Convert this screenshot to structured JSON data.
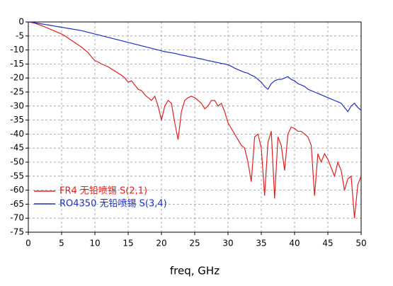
{
  "chart_data": {
    "type": "line",
    "x_label": "freq, GHz",
    "x": [
      0,
      0.5,
      1,
      1.5,
      2,
      2.5,
      3,
      3.5,
      4,
      4.5,
      5,
      5.5,
      6,
      6.5,
      7,
      7.5,
      8,
      8.5,
      9,
      9.5,
      10,
      10.5,
      11,
      11.5,
      12,
      12.5,
      13,
      13.5,
      14,
      14.5,
      15,
      15.5,
      16,
      16.5,
      17,
      17.5,
      18,
      18.5,
      19,
      19.5,
      20,
      20.5,
      21,
      21.5,
      22,
      22.5,
      23,
      23.5,
      24,
      24.5,
      25,
      25.5,
      26,
      26.5,
      27,
      27.5,
      28,
      28.5,
      29,
      29.5,
      30,
      30.5,
      31,
      31.5,
      32,
      32.5,
      33,
      33.5,
      34,
      34.5,
      35,
      35.5,
      36,
      36.5,
      37,
      37.5,
      38,
      38.5,
      39,
      39.5,
      40,
      40.5,
      41,
      41.5,
      42,
      42.5,
      43,
      43.5,
      44,
      44.5,
      45,
      45.5,
      46,
      46.5,
      47,
      47.5,
      48,
      48.5,
      49,
      49.5,
      50
    ],
    "series": [
      {
        "name": "FR4 无铅喷锡 S(2,1)",
        "color": "#e02020",
        "values": [
          0,
          -0.2,
          -0.5,
          -0.9,
          -1.3,
          -1.8,
          -2.3,
          -2.8,
          -3.3,
          -3.8,
          -4.3,
          -5,
          -5.8,
          -6.6,
          -7.4,
          -8.2,
          -9,
          -10,
          -11,
          -12.5,
          -13.8,
          -14.3,
          -15,
          -15.5,
          -16,
          -16.8,
          -17.5,
          -18.3,
          -19,
          -20,
          -21.5,
          -21,
          -22.5,
          -24,
          -24.5,
          -26,
          -27,
          -28,
          -26.5,
          -30,
          -35,
          -30,
          -28,
          -29,
          -36,
          -42,
          -32,
          -28,
          -27,
          -26.5,
          -27,
          -28,
          -29,
          -31,
          -30,
          -28,
          -28,
          -30,
          -29,
          -32,
          -36,
          -38,
          -40,
          -42,
          -44,
          -45,
          -50,
          -57,
          -41,
          -40,
          -45,
          -62,
          -43,
          -39,
          -63,
          -41,
          -44,
          -53,
          -40,
          -37.5,
          -38,
          -39,
          -39,
          -40,
          -41,
          -44,
          -62,
          -47,
          -50,
          -47,
          -49,
          -52,
          -55,
          -50,
          -53,
          -60,
          -56,
          -55,
          -70,
          -58,
          -55
        ]
      },
      {
        "name": "RO4350 无铅喷锡 S(3,4)",
        "color": "#2030c0",
        "values": [
          0,
          -0.1,
          -0.3,
          -0.5,
          -0.7,
          -0.9,
          -1.1,
          -1.3,
          -1.5,
          -1.7,
          -1.9,
          -2.1,
          -2.3,
          -2.5,
          -2.7,
          -2.9,
          -3.1,
          -3.4,
          -3.7,
          -4,
          -4.3,
          -4.6,
          -4.9,
          -5.2,
          -5.5,
          -5.8,
          -6.1,
          -6.4,
          -6.7,
          -7,
          -7.3,
          -7.6,
          -7.9,
          -8.2,
          -8.5,
          -8.8,
          -9.1,
          -9.4,
          -9.7,
          -10,
          -10.3,
          -10.6,
          -10.8,
          -11,
          -11.2,
          -11.5,
          -11.8,
          -12,
          -12.3,
          -12.5,
          -12.7,
          -13,
          -13.2,
          -13.5,
          -13.8,
          -14,
          -14.3,
          -14.5,
          -14.8,
          -15,
          -15.3,
          -15.8,
          -16.5,
          -17,
          -17.5,
          -18,
          -18.3,
          -19,
          -19.5,
          -20.5,
          -21.5,
          -23,
          -24,
          -22,
          -21,
          -20.5,
          -20.5,
          -20,
          -19.5,
          -20.5,
          -21,
          -22,
          -22.5,
          -23,
          -24,
          -24.5,
          -25,
          -25.5,
          -26,
          -26.5,
          -27,
          -27.5,
          -28,
          -28.5,
          -29,
          -30.5,
          -32,
          -30,
          -29,
          -30.5,
          -31.5
        ]
      }
    ],
    "xlim": [
      0,
      50
    ],
    "xticks": [
      0,
      5,
      10,
      15,
      20,
      25,
      30,
      35,
      40,
      45,
      50
    ],
    "ylim": [
      -75,
      0
    ],
    "yticks": [
      0,
      -5,
      -10,
      -15,
      -20,
      -25,
      -30,
      -35,
      -40,
      -45,
      -50,
      -55,
      -60,
      -65,
      -70,
      -75
    ],
    "grid": true,
    "legend": "lower-left"
  }
}
